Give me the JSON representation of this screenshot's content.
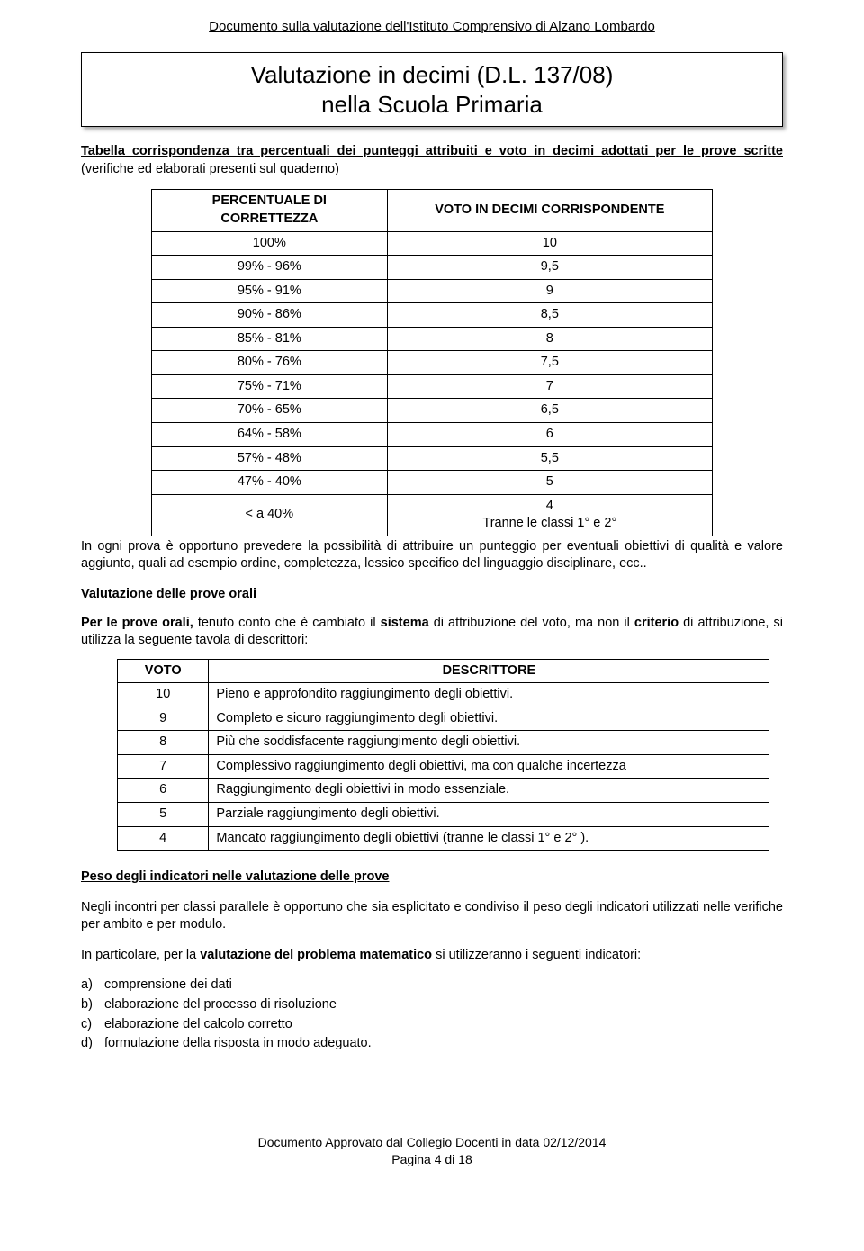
{
  "header": {
    "text": "Documento sulla valutazione dell'Istituto Comprensivo di Alzano Lombardo"
  },
  "title": {
    "line1": "Valutazione in decimi (D.L. 137/08)",
    "line2": "nella Scuola Primaria"
  },
  "intro": {
    "prefix": "Tabella corrispondenza tra percentuali dei punteggi attribuiti e voto in decimi adottati per le prove scritte",
    "suffix": " (verifiche ed elaborati presenti sul quaderno)"
  },
  "table1": {
    "headers": {
      "col1_line1": "PERCENTUALE DI",
      "col1_line2": "CORRETTEZZA",
      "col2": "VOTO IN DECIMI CORRISPONDENTE"
    },
    "rows": [
      {
        "pct": "100%",
        "voto": "10"
      },
      {
        "pct": "99% - 96%",
        "voto": "9,5"
      },
      {
        "pct": "95% - 91%",
        "voto": "9"
      },
      {
        "pct": "90% - 86%",
        "voto": "8,5"
      },
      {
        "pct": "85% - 81%",
        "voto": "8"
      },
      {
        "pct": "80% - 76%",
        "voto": "7,5"
      },
      {
        "pct": "75% - 71%",
        "voto": "7"
      },
      {
        "pct": "70% - 65%",
        "voto": "6,5"
      },
      {
        "pct": "64% - 58%",
        "voto": "6"
      },
      {
        "pct": "57% - 48%",
        "voto": "5,5"
      },
      {
        "pct": "47% - 40%",
        "voto": "5"
      }
    ],
    "last_row": {
      "pct": "< a  40%",
      "voto_line1": "4",
      "voto_line2": "Tranne le classi  1° e 2°"
    }
  },
  "note1": "In ogni prova è opportuno prevedere la possibilità di attribuire un punteggio per eventuali obiettivi di qualità e valore aggiunto, quali ad esempio ordine, completezza, lessico specifico del linguaggio disciplinare, ecc..",
  "oral": {
    "heading": "Valutazione delle prove orali",
    "intro_bold1": "Per le prove orali,",
    "intro_mid1": " tenuto conto che è cambiato il ",
    "intro_bold2": "sistema",
    "intro_mid2": " di attribuzione del voto, ma non il ",
    "intro_bold3": "criterio",
    "intro_end": " di attribuzione, si utilizza la seguente tavola di descrittori:"
  },
  "table2": {
    "headers": {
      "col1": "VOTO",
      "col2": "DESCRITTORE"
    },
    "rows": [
      {
        "voto": "10",
        "desc": "Pieno e approfondito raggiungimento degli obiettivi."
      },
      {
        "voto": "9",
        "desc": "Completo e sicuro raggiungimento degli obiettivi."
      },
      {
        "voto": "8",
        "desc": "Più che soddisfacente raggiungimento degli obiettivi."
      },
      {
        "voto": "7",
        "desc": "Complessivo raggiungimento degli obiettivi, ma con qualche incertezza"
      },
      {
        "voto": "6",
        "desc": "Raggiungimento degli obiettivi in modo essenziale."
      },
      {
        "voto": "5",
        "desc": "Parziale raggiungimento degli obiettivi."
      },
      {
        "voto": "4",
        "desc": "Mancato raggiungimento degli obiettivi (tranne le classi 1° e 2° )."
      }
    ]
  },
  "peso": {
    "heading": "Peso degli indicatori nelle valutazione delle prove",
    "para1": "Negli incontri per classi parallele è opportuno che sia esplicitato e condiviso il peso degli indicatori utilizzati nelle verifiche per ambito e per modulo.",
    "para2_prefix": "In particolare, per la ",
    "para2_bold": "valutazione del problema matematico",
    "para2_suffix": " si utilizzeranno i seguenti indicatori:"
  },
  "indicators": [
    {
      "marker": "a)",
      "text": "comprensione dei dati"
    },
    {
      "marker": "b)",
      "text": "elaborazione del processo di risoluzione"
    },
    {
      "marker": "c)",
      "text": "elaborazione del calcolo corretto"
    },
    {
      "marker": "d)",
      "text": "formulazione della risposta in modo adeguato."
    }
  ],
  "footer": {
    "line1": "Documento Approvato dal Collegio Docenti in data 02/12/2014",
    "line2": "Pagina 4 di 18"
  }
}
